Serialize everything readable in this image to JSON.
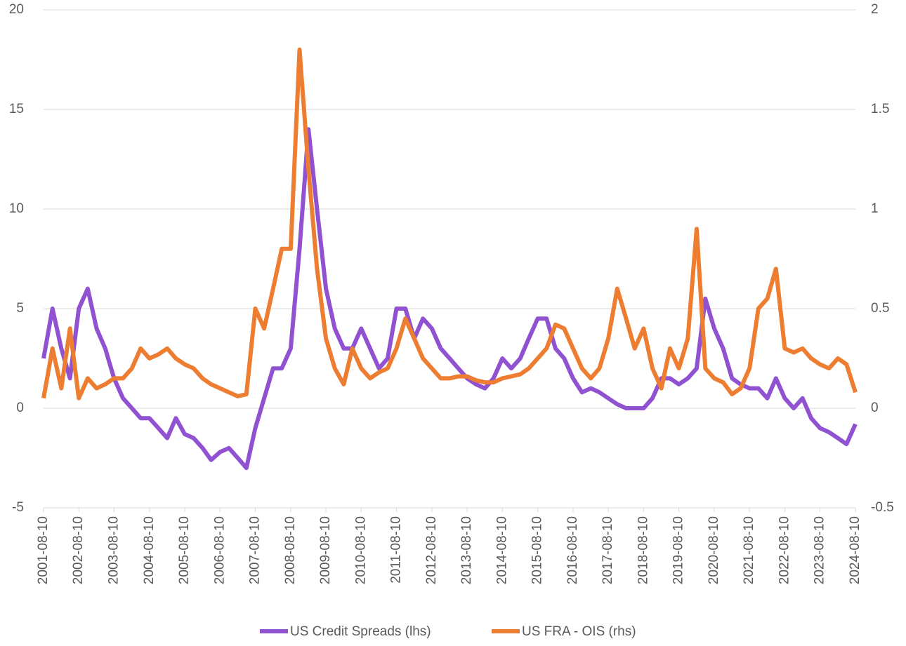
{
  "chart_data": {
    "type": "line",
    "x": [
      "2001-08-10",
      "2001-11-10",
      "2002-02-10",
      "2002-05-10",
      "2002-08-10",
      "2002-11-10",
      "2003-02-10",
      "2003-05-10",
      "2003-08-10",
      "2003-11-10",
      "2004-02-10",
      "2004-05-10",
      "2004-08-10",
      "2004-11-10",
      "2005-02-10",
      "2005-05-10",
      "2005-08-10",
      "2005-11-10",
      "2006-02-10",
      "2006-05-10",
      "2006-08-10",
      "2006-11-10",
      "2007-02-10",
      "2007-05-10",
      "2007-08-10",
      "2007-11-10",
      "2008-02-10",
      "2008-05-10",
      "2008-08-10",
      "2008-11-10",
      "2009-02-10",
      "2009-05-10",
      "2009-08-10",
      "2009-11-10",
      "2010-02-10",
      "2010-05-10",
      "2010-08-10",
      "2010-11-10",
      "2011-02-10",
      "2011-05-10",
      "2011-08-10",
      "2011-11-10",
      "2012-02-10",
      "2012-05-10",
      "2012-08-10",
      "2012-11-10",
      "2013-02-10",
      "2013-05-10",
      "2013-08-10",
      "2013-11-10",
      "2014-02-10",
      "2014-05-10",
      "2014-08-10",
      "2014-11-10",
      "2015-02-10",
      "2015-05-10",
      "2015-08-10",
      "2015-11-10",
      "2016-02-10",
      "2016-05-10",
      "2016-08-10",
      "2016-11-10",
      "2017-02-10",
      "2017-05-10",
      "2017-08-10",
      "2017-11-10",
      "2018-02-10",
      "2018-05-10",
      "2018-08-10",
      "2018-11-10",
      "2019-02-10",
      "2019-05-10",
      "2019-08-10",
      "2019-11-10",
      "2020-02-10",
      "2020-05-10",
      "2020-08-10",
      "2020-11-10",
      "2021-02-10",
      "2021-05-10",
      "2021-08-10",
      "2021-11-10",
      "2022-02-10",
      "2022-05-10",
      "2022-08-10",
      "2022-11-10",
      "2023-02-10",
      "2023-05-10",
      "2023-08-10",
      "2023-11-10",
      "2024-02-10",
      "2024-05-10",
      "2024-08-10"
    ],
    "series": [
      {
        "name": "US Credit Spreads (lhs)",
        "color": "#9152d1",
        "values": [
          2.5,
          5,
          3,
          1.5,
          5,
          6,
          4,
          3,
          1.5,
          0.5,
          0,
          -0.5,
          -0.5,
          -1,
          -1.5,
          -0.5,
          -1.3,
          -1.5,
          -2,
          -2.6,
          -2.2,
          -2,
          -2.5,
          -3,
          -1,
          0.5,
          2,
          2,
          3,
          8,
          14,
          10,
          6,
          4,
          3,
          3,
          4,
          3,
          2,
          2.5,
          5,
          5,
          3.5,
          4.5,
          4,
          3,
          2.5,
          2,
          1.5,
          1.2,
          1,
          1.5,
          2.5,
          2,
          2.5,
          3.5,
          4.5,
          4.5,
          3,
          2.5,
          1.5,
          0.8,
          1,
          0.8,
          0.5,
          0.2,
          0,
          0,
          0,
          0.5,
          1.5,
          1.5,
          1.2,
          1.5,
          2,
          5.5,
          4,
          3,
          1.5,
          1.2,
          1,
          1,
          0.5,
          1.5,
          0.5,
          0,
          0.5,
          -0.5,
          -1,
          -1.2,
          -1.5,
          -1.8,
          -0.8
        ]
      },
      {
        "name": "US FRA - OIS (rhs)",
        "color": "#ed7d31",
        "axis": "y2",
        "values": [
          0.05,
          0.3,
          0.1,
          0.4,
          0.05,
          0.15,
          0.1,
          0.12,
          0.15,
          0.15,
          0.2,
          0.3,
          0.25,
          0.27,
          0.3,
          0.25,
          0.22,
          0.2,
          0.15,
          0.12,
          0.1,
          0.08,
          0.06,
          0.07,
          0.5,
          0.4,
          0.6,
          0.8,
          0.8,
          1.8,
          1.2,
          0.7,
          0.35,
          0.2,
          0.12,
          0.3,
          0.2,
          0.15,
          0.18,
          0.2,
          0.3,
          0.45,
          0.35,
          0.25,
          0.2,
          0.15,
          0.15,
          0.16,
          0.16,
          0.14,
          0.13,
          0.13,
          0.15,
          0.16,
          0.17,
          0.2,
          0.25,
          0.3,
          0.42,
          0.4,
          0.3,
          0.2,
          0.15,
          0.2,
          0.35,
          0.6,
          0.45,
          0.3,
          0.4,
          0.2,
          0.1,
          0.3,
          0.2,
          0.35,
          0.9,
          0.2,
          0.15,
          0.13,
          0.07,
          0.1,
          0.2,
          0.5,
          0.55,
          0.7,
          0.3,
          0.28,
          0.3,
          0.25,
          0.22,
          0.2,
          0.25,
          0.22,
          0.08
        ]
      }
    ],
    "xlim": [
      "2001-08-10",
      "2024-08-10"
    ],
    "xticks": [
      "2001-08-10",
      "2002-08-10",
      "2003-08-10",
      "2004-08-10",
      "2005-08-10",
      "2006-08-10",
      "2007-08-10",
      "2008-08-10",
      "2009-08-10",
      "2010-08-10",
      "2011-08-10",
      "2012-08-10",
      "2013-08-10",
      "2014-08-10",
      "2015-08-10",
      "2016-08-10",
      "2017-08-10",
      "2018-08-10",
      "2019-08-10",
      "2020-08-10",
      "2021-08-10",
      "2022-08-10",
      "2023-08-10",
      "2024-08-10"
    ],
    "ylim": [
      -5,
      20
    ],
    "yticks": [
      -5,
      0,
      5,
      10,
      15,
      20
    ],
    "y2lim": [
      -0.5,
      2
    ],
    "y2ticks": [
      -0.5,
      0,
      0.5,
      1,
      1.5,
      2
    ],
    "grid": true,
    "legend": "bottom"
  }
}
